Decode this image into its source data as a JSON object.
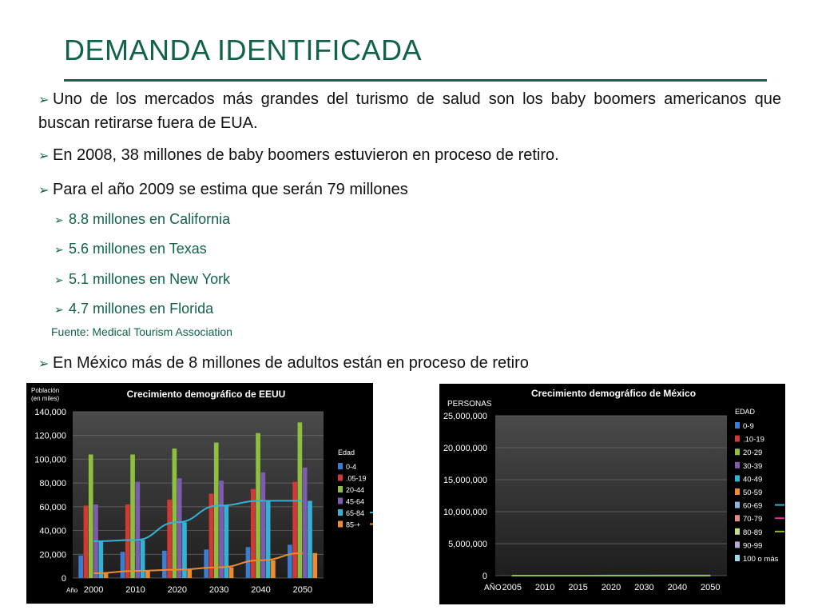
{
  "slide": {
    "title": "DEMANDA IDENTIFICADA",
    "accent_color": "#10634a",
    "bullets": [
      "Uno de los mercados más grandes del turismo de salud son los baby boomers americanos que buscan retirarse fuera de EUA.",
      "En 2008, 38 millones de baby boomers estuvieron en proceso de retiro.",
      "Para el año 2009 se estima que serán 79 millones"
    ],
    "sub_bullets": [
      "8.8 millones en California",
      "5.6 millones en Texas",
      "5.1 millones en New York",
      "4.7 millones en Florida"
    ],
    "source": "Fuente: Medical Tourism Association",
    "last_bullet": "En México más de 8 millones de adultos están en proceso de retiro",
    "arrow_icon": "arrow-bullet-icon"
  },
  "chart_data": [
    {
      "type": "bar",
      "title": "Crecimiento demográfico de EEUU",
      "ylabel": "Población (en miles)",
      "xlabel": "Año",
      "legend_title": "Edad",
      "legend_position": "right",
      "grid": true,
      "ylim": [
        0,
        140000
      ],
      "yticks": [
        "0",
        "20,000",
        "40,000",
        "60,000",
        "80,000",
        "100,000",
        "120,000",
        "140,000"
      ],
      "categories": [
        "2000",
        "2010",
        "2020",
        "2030",
        "2040",
        "2050"
      ],
      "series": [
        {
          "name": "0-4",
          "color": "#3a7dd1",
          "values": [
            19000,
            22000,
            23000,
            24000,
            26000,
            28000
          ]
        },
        {
          "name": ".05-19",
          "color": "#d13a34",
          "values": [
            61000,
            62000,
            66000,
            71000,
            75000,
            81000
          ]
        },
        {
          "name": "20-44",
          "color": "#8fbf3e",
          "values": [
            104000,
            104000,
            109000,
            114000,
            122000,
            131000
          ]
        },
        {
          "name": "45-64",
          "color": "#7d5cae",
          "values": [
            62000,
            81000,
            84000,
            82000,
            89000,
            93000
          ]
        },
        {
          "name": "65-84",
          "color": "#32b3d6",
          "values": [
            31000,
            32000,
            47000,
            61000,
            65000,
            65000
          ]
        },
        {
          "name": "85-+",
          "color": "#f08a2e",
          "values": [
            4000,
            6000,
            7000,
            9000,
            15000,
            21000
          ]
        }
      ],
      "trendlines": [
        {
          "series": "65-84",
          "color": "#32b3d6"
        },
        {
          "series": "85-+",
          "color": "#f08a2e"
        }
      ]
    },
    {
      "type": "bar",
      "title": "Crecimiento demográfico de México",
      "ylabel": "PERSONAS",
      "xlabel": "AÑO",
      "legend_title": "EDAD",
      "legend_position": "right",
      "grid": true,
      "ylim": [
        0,
        25000000
      ],
      "yticks": [
        "0",
        "5,000,000",
        "10,000,000",
        "15,000,000",
        "20,000,000",
        "25,000,000"
      ],
      "categories": [
        "2005",
        "2010",
        "2015",
        "2020",
        "2030",
        "2040",
        "2050"
      ],
      "series": [
        {
          "name": "0-9",
          "color": "#3a7dd1",
          "values": [
            21500,
            19700,
            18700,
            18000,
            16800,
            15500,
            13700
          ]
        },
        {
          "name": ".10-19",
          "color": "#d13a34",
          "values": [
            21300,
            21200,
            20200,
            18700,
            16800,
            15700,
            14200
          ]
        },
        {
          "name": "20-29",
          "color": "#8fbf3e",
          "values": [
            18400,
            18800,
            19200,
            19200,
            16700,
            15700,
            14300
          ]
        },
        {
          "name": "30-39",
          "color": "#7d5cae",
          "values": [
            15800,
            16700,
            17500,
            18300,
            18000,
            16200,
            15000
          ]
        },
        {
          "name": "40-49",
          "color": "#32b3d6",
          "values": [
            11700,
            13500,
            15000,
            16000,
            17100,
            17500,
            15500
          ]
        },
        {
          "name": "50-59",
          "color": "#f08a2e",
          "values": [
            7400,
            9100,
            11200,
            12800,
            15200,
            16200,
            16800
          ]
        },
        {
          "name": "60-69",
          "color": "#8fb3e0",
          "values": [
            4400,
            5700,
            6700,
            8000,
            11500,
            14200,
            15000
          ]
        },
        {
          "name": "70-79",
          "color": "#e88d8d",
          "values": [
            2300,
            3000,
            3600,
            4200,
            6500,
            9500,
            11600
          ]
        },
        {
          "name": "80-89",
          "color": "#c4dc92",
          "values": [
            900,
            1100,
            1400,
            1700,
            2600,
            3900,
            5800
          ]
        },
        {
          "name": "90-99",
          "color": "#b9a6d5",
          "values": [
            150,
            200,
            250,
            300,
            400,
            700,
            1200
          ]
        },
        {
          "name": "100 o más",
          "color": "#9fd9ea",
          "values": [
            20,
            25,
            30,
            40,
            60,
            100,
            150
          ]
        }
      ],
      "trendlines": [
        {
          "series": "60-69",
          "color": "#32b3d6"
        },
        {
          "series": "70-79",
          "color": "#e0309b"
        },
        {
          "series": "80-89",
          "color": "#8fbf3e"
        }
      ]
    }
  ]
}
